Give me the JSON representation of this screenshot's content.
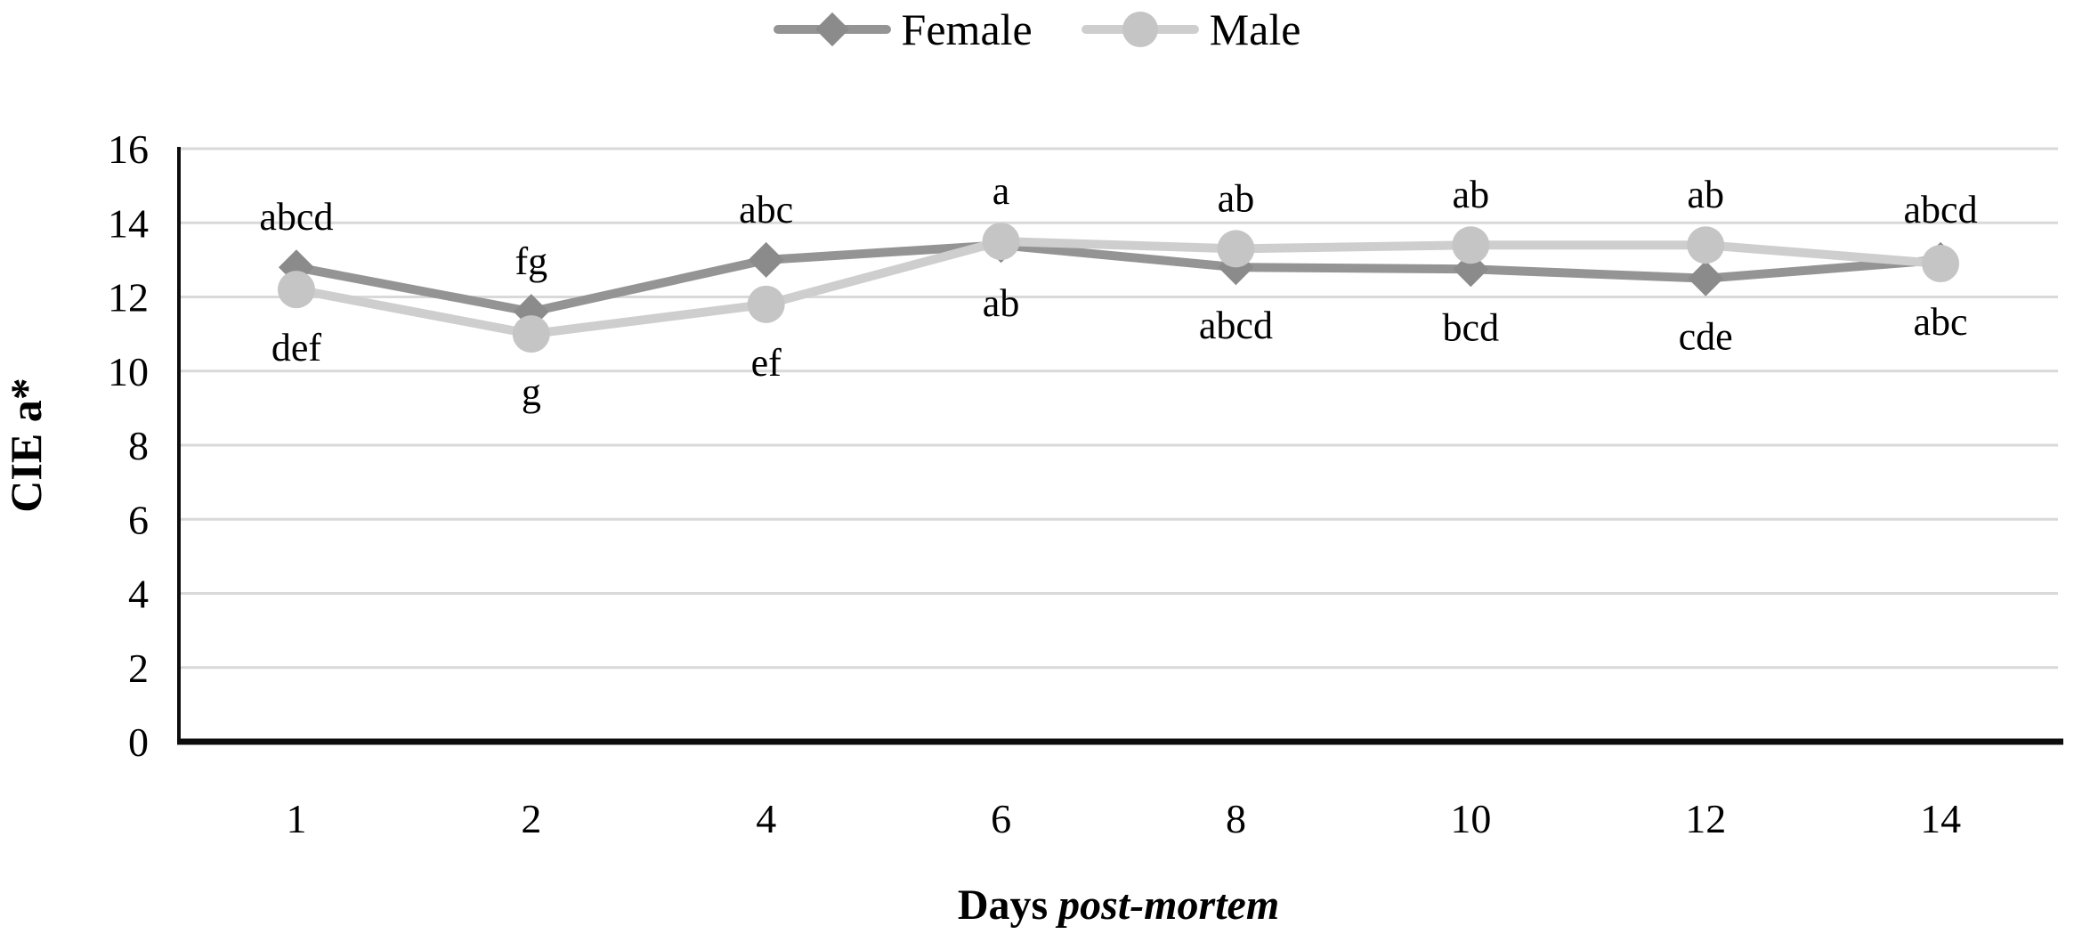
{
  "legend": {
    "items": [
      {
        "label": "Female",
        "marker": "diamond"
      },
      {
        "label": "Male",
        "marker": "circle"
      }
    ]
  },
  "colors": {
    "female_line": "#949494",
    "female_marker": "#8B8B8B",
    "male_line": "#CECECE",
    "male_marker": "#C5C5C5",
    "gridline": "#D9D9D9",
    "axis": "#0D0D0D",
    "text": "#000000"
  },
  "chart_data": {
    "type": "line",
    "title": "",
    "xlabel": "Days post-mortem",
    "xlabel_prefix": "Days ",
    "xlabel_italic": "post-mortem",
    "ylabel": "CIE a*",
    "categories": [
      "1",
      "2",
      "4",
      "6",
      "8",
      "10",
      "12",
      "14"
    ],
    "ylim": [
      0,
      16
    ],
    "ytick_step": 2,
    "yticks": [
      "0",
      "2",
      "4",
      "6",
      "8",
      "10",
      "12",
      "14",
      "16"
    ],
    "grid": "horizontal",
    "legend_position": "top-center",
    "series": [
      {
        "name": "Female",
        "marker": "diamond",
        "color_key": "female",
        "values": [
          12.8,
          11.6,
          13.0,
          13.4,
          12.8,
          12.75,
          12.5,
          13.0
        ],
        "point_labels": [
          {
            "text": "abcd",
            "pos": "above"
          },
          {
            "text": "fg",
            "pos": "above"
          },
          {
            "text": "abc",
            "pos": "above"
          },
          {
            "text": "ab",
            "pos": "below"
          },
          {
            "text": "abcd",
            "pos": "below"
          },
          {
            "text": "bcd",
            "pos": "below"
          },
          {
            "text": "cde",
            "pos": "below"
          },
          {
            "text": "abcd",
            "pos": "above"
          }
        ]
      },
      {
        "name": "Male",
        "marker": "circle",
        "color_key": "male",
        "values": [
          12.2,
          11.0,
          11.8,
          13.5,
          13.3,
          13.4,
          13.4,
          12.9
        ],
        "point_labels": [
          {
            "text": "def",
            "pos": "below"
          },
          {
            "text": "g",
            "pos": "below"
          },
          {
            "text": "ef",
            "pos": "below"
          },
          {
            "text": "a",
            "pos": "above"
          },
          {
            "text": "ab",
            "pos": "above"
          },
          {
            "text": "ab",
            "pos": "above"
          },
          {
            "text": "ab",
            "pos": "above"
          },
          {
            "text": "abc",
            "pos": "below"
          }
        ]
      }
    ]
  }
}
